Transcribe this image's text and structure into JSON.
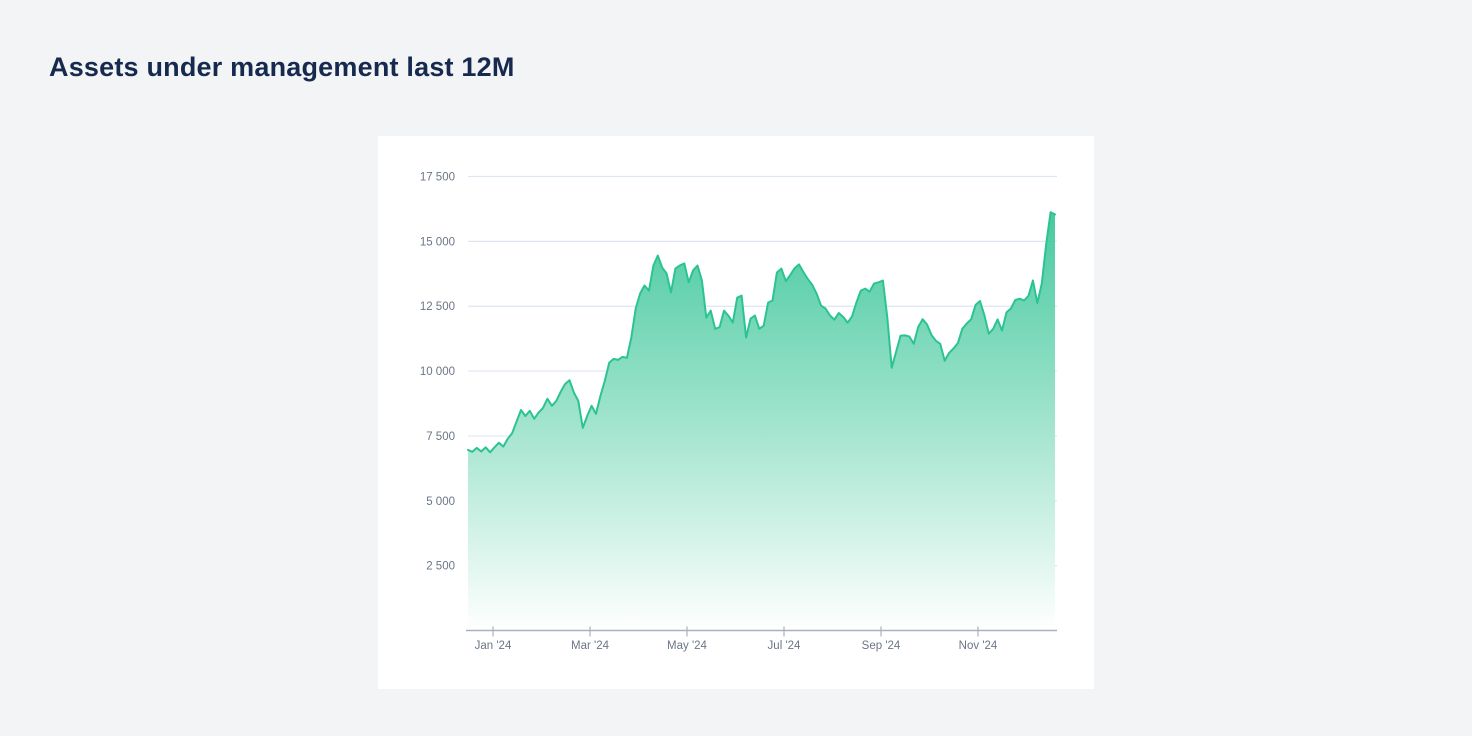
{
  "page": {
    "background_color": "#f3f4f6",
    "card_color": "#ffffff"
  },
  "title": {
    "text": "Assets under management last 12M",
    "color": "#16294e"
  },
  "chart_data": {
    "type": "area",
    "title": "Assets under management last 12M",
    "xlabel": "",
    "ylabel": "",
    "x_range_note": "daily values, mid-Dec 2023 through mid-Dec 2024",
    "x_tick_labels": [
      "Jan '24",
      "Mar '24",
      "May '24",
      "Jul '24",
      "Sep '24",
      "Nov '24"
    ],
    "y_tick_labels": [
      "17 500",
      "15 000",
      "12 500",
      "10 000",
      "7 500",
      "5 000",
      "2 500"
    ],
    "y_tick_values": [
      17500,
      15000,
      12500,
      10000,
      7500,
      5000,
      2500
    ],
    "ylim": [
      0,
      18000
    ],
    "grid": true,
    "legend": false,
    "line_color": "#2cc392",
    "fill_gradient_top": "rgba(62,199,154,0.95)",
    "fill_gradient_bottom": "rgba(255,255,255,1)",
    "grid_color": "#dfe6f0",
    "axis_color": "#a9b1bc",
    "tick_label_color": "#6b7685",
    "series": [
      {
        "name": "Assets under management",
        "values": [
          6960,
          6890,
          7040,
          6900,
          7060,
          6870,
          7060,
          7240,
          7090,
          7390,
          7600,
          8050,
          8500,
          8270,
          8470,
          8160,
          8400,
          8580,
          8930,
          8660,
          8850,
          9200,
          9500,
          9650,
          9170,
          8850,
          7810,
          8270,
          8660,
          8350,
          9040,
          9620,
          10320,
          10470,
          10430,
          10550,
          10510,
          11290,
          12410,
          12990,
          13300,
          13100,
          14070,
          14455,
          13990,
          13760,
          13030,
          13950,
          14070,
          14150,
          13420,
          13880,
          14070,
          13490,
          12060,
          12330,
          11630,
          11690,
          12330,
          12140,
          11870,
          12830,
          12910,
          11290,
          12020,
          12140,
          11630,
          11750,
          12640,
          12720,
          13800,
          13950,
          13470,
          13700,
          13960,
          14110,
          13820,
          13550,
          13320,
          12980,
          12520,
          12410,
          12150,
          11980,
          12240,
          12090,
          11870,
          12100,
          12640,
          13100,
          13180,
          13060,
          13370,
          13420,
          13490,
          12060,
          10130,
          10740,
          11360,
          11380,
          11330,
          11050,
          11700,
          12000,
          11800,
          11400,
          11170,
          11050,
          10400,
          10700,
          10870,
          11080,
          11630,
          11830,
          11990,
          12550,
          12700,
          12150,
          11440,
          11630,
          11990,
          11560,
          12260,
          12410,
          12740,
          12790,
          12720,
          12900,
          13490,
          12620,
          13370,
          14900,
          16120,
          16040
        ]
      }
    ]
  }
}
